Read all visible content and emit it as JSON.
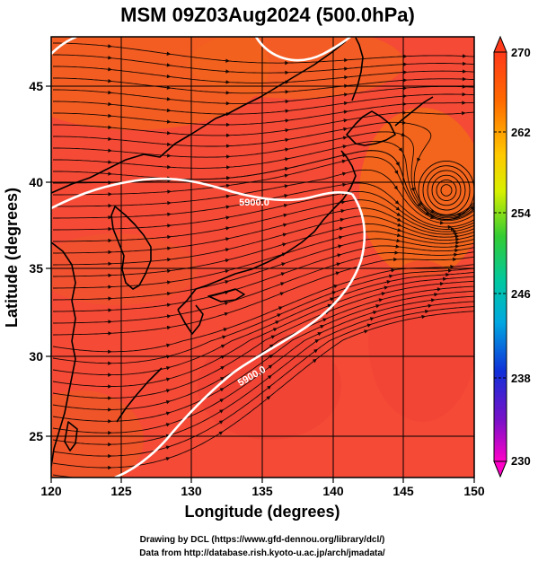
{
  "title": "MSM 09Z03Aug2024 (500.0hPa)",
  "map": {
    "xlabel": "Longitude (degrees)",
    "ylabel": "Latitude  (degrees)",
    "lon_range": [
      120,
      150
    ],
    "lat_range": [
      22.5,
      48
    ],
    "x_ticks": [
      120,
      125,
      130,
      135,
      140,
      145,
      150
    ],
    "y_ticks": [
      25,
      30,
      35,
      40,
      45
    ],
    "contour_labels": [
      "5900.0",
      "5900.0"
    ],
    "colors": {
      "field_main": "#f54a36",
      "field_hot": "#f26a18",
      "field_warm": "#ea2f2a",
      "contour": "#ffffff",
      "streamline": "#000000",
      "grid": "#000000"
    }
  },
  "colorbar": {
    "ticks": [
      "270",
      "262",
      "254",
      "246",
      "238",
      "230"
    ],
    "range": [
      230,
      270
    ],
    "unit_hint": "temperature (K)"
  },
  "credits": {
    "line1": "Drawing by DCL (https://www.gfd-dennou.org/library/dcl/)",
    "line2": "Data from http://database.rish.kyoto-u.ac.jp/arch/jmadata/"
  }
}
